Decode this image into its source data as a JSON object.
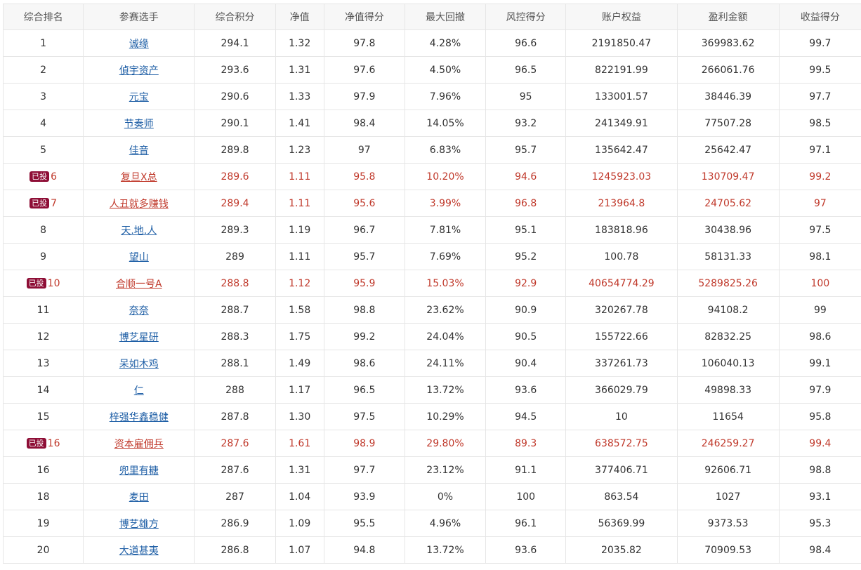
{
  "headers": [
    "综合排名",
    "参赛选手",
    "综合积分",
    "净值",
    "净值得分",
    "最大回撤",
    "风控得分",
    "账户权益",
    "盈利金额",
    "收益得分"
  ],
  "rows": [
    {
      "rank": "1",
      "name": "诚缘",
      "score": "294.1",
      "nav": "1.32",
      "nav_score": "97.8",
      "drawdown": "4.28%",
      "risk_score": "96.6",
      "equity": "2191850.47",
      "profit": "369983.62",
      "return_score": "99.7"
    },
    {
      "rank": "2",
      "name": "偵宇资产",
      "score": "293.6",
      "nav": "1.31",
      "nav_score": "97.6",
      "drawdown": "4.50%",
      "risk_score": "96.5",
      "equity": "822191.99",
      "profit": "266061.76",
      "return_score": "99.5"
    },
    {
      "rank": "3",
      "name": "元宝",
      "score": "290.6",
      "nav": "1.33",
      "nav_score": "97.9",
      "drawdown": "7.96%",
      "risk_score": "95",
      "equity": "133001.57",
      "profit": "38446.39",
      "return_score": "97.7"
    },
    {
      "rank": "4",
      "name": "节奏师",
      "score": "290.1",
      "nav": "1.41",
      "nav_score": "98.4",
      "drawdown": "14.05%",
      "risk_score": "93.2",
      "equity": "241349.91",
      "profit": "77507.28",
      "return_score": "98.5"
    },
    {
      "rank": "5",
      "name": "佳音",
      "score": "289.8",
      "nav": "1.23",
      "nav_score": "97",
      "drawdown": "6.83%",
      "risk_score": "95.7",
      "equity": "135642.47",
      "profit": "25642.47",
      "return_score": "97.1"
    },
    {
      "badge": "已投",
      "rank": "6",
      "name": "复旦X总",
      "score": "289.6",
      "nav": "1.11",
      "nav_score": "95.8",
      "drawdown": "10.20%",
      "risk_score": "94.6",
      "equity": "1245923.03",
      "profit": "130709.47",
      "return_score": "99.2"
    },
    {
      "badge": "已投",
      "rank": "7",
      "name": "人丑就多赚钱",
      "score": "289.4",
      "nav": "1.11",
      "nav_score": "95.6",
      "drawdown": "3.99%",
      "risk_score": "96.8",
      "equity": "213964.8",
      "profit": "24705.62",
      "return_score": "97"
    },
    {
      "rank": "8",
      "name": "天.地.人",
      "score": "289.3",
      "nav": "1.19",
      "nav_score": "96.7",
      "drawdown": "7.81%",
      "risk_score": "95.1",
      "equity": "183818.96",
      "profit": "30438.96",
      "return_score": "97.5"
    },
    {
      "rank": "9",
      "name": "望山",
      "score": "289",
      "nav": "1.11",
      "nav_score": "95.7",
      "drawdown": "7.69%",
      "risk_score": "95.2",
      "equity": "100.78",
      "profit": "58131.33",
      "return_score": "98.1"
    },
    {
      "badge": "已投",
      "rank": "10",
      "name": "合顺一号A",
      "score": "288.8",
      "nav": "1.12",
      "nav_score": "95.9",
      "drawdown": "15.03%",
      "risk_score": "92.9",
      "equity": "40654774.29",
      "profit": "5289825.26",
      "return_score": "100"
    },
    {
      "rank": "11",
      "name": "奈奈",
      "score": "288.7",
      "nav": "1.58",
      "nav_score": "98.8",
      "drawdown": "23.62%",
      "risk_score": "90.9",
      "equity": "320267.78",
      "profit": "94108.2",
      "return_score": "99"
    },
    {
      "rank": "12",
      "name": "博艺星研",
      "score": "288.3",
      "nav": "1.75",
      "nav_score": "99.2",
      "drawdown": "24.04%",
      "risk_score": "90.5",
      "equity": "155722.66",
      "profit": "82832.25",
      "return_score": "98.6"
    },
    {
      "rank": "13",
      "name": "呆如木鸡",
      "score": "288.1",
      "nav": "1.49",
      "nav_score": "98.6",
      "drawdown": "24.11%",
      "risk_score": "90.4",
      "equity": "337261.73",
      "profit": "106040.13",
      "return_score": "99.1"
    },
    {
      "rank": "14",
      "name": "仁",
      "score": "288",
      "nav": "1.17",
      "nav_score": "96.5",
      "drawdown": "13.72%",
      "risk_score": "93.6",
      "equity": "366029.79",
      "profit": "49898.33",
      "return_score": "97.9"
    },
    {
      "rank": "15",
      "name": "梓强华鑫稳健",
      "score": "287.8",
      "nav": "1.30",
      "nav_score": "97.5",
      "drawdown": "10.29%",
      "risk_score": "94.5",
      "equity": "10",
      "profit": "11654",
      "return_score": "95.8"
    },
    {
      "badge": "已投",
      "rank": "16",
      "name": "资本雇佣兵",
      "score": "287.6",
      "nav": "1.61",
      "nav_score": "98.9",
      "drawdown": "29.80%",
      "risk_score": "89.3",
      "equity": "638572.75",
      "profit": "246259.27",
      "return_score": "99.4"
    },
    {
      "rank": "16",
      "name": "兜里有糖",
      "score": "287.6",
      "nav": "1.31",
      "nav_score": "97.7",
      "drawdown": "23.12%",
      "risk_score": "91.1",
      "equity": "377406.71",
      "profit": "92606.71",
      "return_score": "98.8"
    },
    {
      "rank": "18",
      "name": "麦田",
      "score": "287",
      "nav": "1.04",
      "nav_score": "93.9",
      "drawdown": "0%",
      "risk_score": "100",
      "equity": "863.54",
      "profit": "1027",
      "return_score": "93.1"
    },
    {
      "rank": "19",
      "name": "博艺雄方",
      "score": "286.9",
      "nav": "1.09",
      "nav_score": "95.5",
      "drawdown": "4.96%",
      "risk_score": "96.1",
      "equity": "56369.99",
      "profit": "9373.53",
      "return_score": "95.3"
    },
    {
      "rank": "20",
      "name": "大道甚夷",
      "score": "286.8",
      "nav": "1.07",
      "nav_score": "94.8",
      "drawdown": "13.72%",
      "risk_score": "93.6",
      "equity": "2035.82",
      "profit": "70909.53",
      "return_score": "98.4"
    }
  ],
  "colors": {
    "highlight_text": "#c0392b",
    "badge_bg": "#8e0e36",
    "link": "#1f5fa6",
    "border": "#e6e6e6",
    "header_bg": "#f7f7f7"
  }
}
